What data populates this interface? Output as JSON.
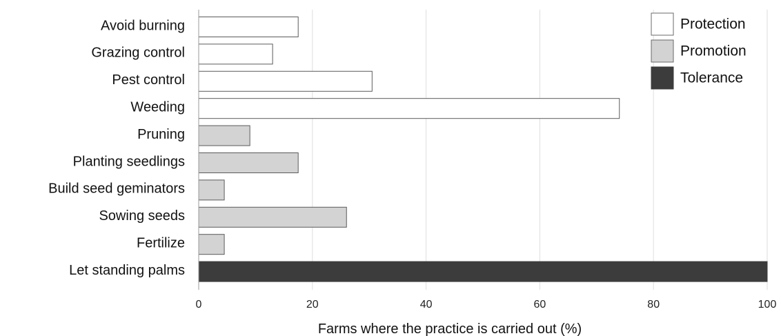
{
  "chart_data": {
    "type": "bar",
    "orientation": "horizontal",
    "categories": [
      "Avoid burning",
      "Grazing control ",
      "Pest control",
      "Weeding",
      "Pruning",
      "Planting seedlings",
      "Build seed geminators ",
      "Sowing seeds",
      "Fertilize",
      "Let standing palms"
    ],
    "values": [
      17.5,
      13,
      30.5,
      74,
      9,
      17.5,
      4.5,
      26,
      4.5,
      100
    ],
    "groups": [
      "Protection",
      "Protection",
      "Protection",
      "Protection",
      "Promotion",
      "Promotion",
      "Promotion",
      "Promotion",
      "Promotion",
      "Tolerance"
    ],
    "xlabel": "Farms where the practice is carried out (%)",
    "ylabel": "",
    "xlim": [
      0,
      100
    ],
    "xticks": [
      0,
      20,
      40,
      60,
      80,
      100
    ],
    "grid": "vertical",
    "legend": {
      "placement": "top-right",
      "entries": [
        {
          "name": "Protection",
          "color": "#ffffff"
        },
        {
          "name": "Promotion",
          "color": "#d3d3d3"
        },
        {
          "name": "Tolerance",
          "color": "#3c3c3c"
        }
      ]
    }
  }
}
